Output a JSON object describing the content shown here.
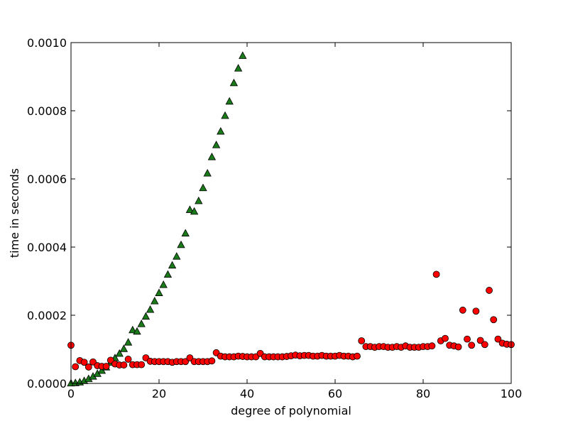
{
  "chart_data": {
    "type": "scatter",
    "title": "",
    "xlabel": "degree of polynomial",
    "ylabel": "time in seconds",
    "xlim": [
      0,
      100
    ],
    "ylim": [
      0,
      0.001
    ],
    "xticks": [
      0,
      20,
      40,
      60,
      80,
      100
    ],
    "xtick_labels": [
      "0",
      "20",
      "40",
      "60",
      "80",
      "100"
    ],
    "yticks": [
      0,
      0.0002,
      0.0004,
      0.0006,
      0.0008,
      0.001
    ],
    "ytick_labels": [
      "0.0000",
      "0.0002",
      "0.0004",
      "0.0006",
      "0.0008",
      "0.0010"
    ],
    "grid": false,
    "legend": "none",
    "series": [
      {
        "marker": "triangle",
        "color": "#1a7a1a",
        "x": [
          0,
          1,
          2,
          3,
          4,
          5,
          6,
          7,
          8,
          9,
          10,
          11,
          12,
          13,
          14,
          15,
          16,
          17,
          18,
          19,
          20,
          21,
          22,
          23,
          24,
          25,
          26,
          27,
          28,
          29,
          30,
          31,
          32,
          33,
          34,
          35,
          36,
          37,
          38,
          39
        ],
        "y": [
          1e-06,
          2e-06,
          4e-06,
          8e-06,
          1.4e-05,
          2.1e-05,
          2.9e-05,
          3.8e-05,
          4.8e-05,
          6.2e-05,
          7.5e-05,
          8.8e-05,
          0.000102,
          0.000121,
          0.000157,
          0.000153,
          0.000175,
          0.000197,
          0.000217,
          0.000242,
          0.000266,
          0.00029,
          0.00032,
          0.000347,
          0.000373,
          0.000407,
          0.000441,
          0.00051,
          0.000505,
          0.000536,
          0.000574,
          0.000617,
          0.000665,
          0.0007,
          0.00074,
          0.000786,
          0.000828,
          0.000882,
          0.000925,
          0.000962
        ]
      },
      {
        "marker": "circle",
        "color": "#ff0000",
        "x": [
          0,
          1,
          2,
          3,
          4,
          5,
          6,
          7,
          8,
          9,
          10,
          11,
          12,
          13,
          14,
          15,
          16,
          17,
          18,
          19,
          20,
          21,
          22,
          23,
          24,
          25,
          26,
          27,
          28,
          29,
          30,
          31,
          32,
          33,
          34,
          35,
          36,
          37,
          38,
          39,
          40,
          41,
          42,
          43,
          44,
          45,
          46,
          47,
          48,
          49,
          50,
          51,
          52,
          53,
          54,
          55,
          56,
          57,
          58,
          59,
          60,
          61,
          62,
          63,
          64,
          65,
          66,
          67,
          68,
          69,
          70,
          71,
          72,
          73,
          74,
          75,
          76,
          77,
          78,
          79,
          80,
          81,
          82,
          83,
          84,
          85,
          86,
          87,
          88,
          89,
          90,
          91,
          92,
          93,
          94,
          95,
          96,
          97,
          98,
          99,
          100
        ],
        "y": [
          0.000112,
          4.9e-05,
          6.7e-05,
          6.2e-05,
          4.8e-05,
          6.3e-05,
          5.2e-05,
          5e-05,
          5e-05,
          6.8e-05,
          5.7e-05,
          5.4e-05,
          5.4e-05,
          7.1e-05,
          5.5e-05,
          5.5e-05,
          5.5e-05,
          7.5e-05,
          6.5e-05,
          6.4e-05,
          6.4e-05,
          6.4e-05,
          6.4e-05,
          6.2e-05,
          6.4e-05,
          6.4e-05,
          6.4e-05,
          7.5e-05,
          6.4e-05,
          6.4e-05,
          6.4e-05,
          6.4e-05,
          6.6e-05,
          9e-05,
          8e-05,
          7.8e-05,
          7.8e-05,
          7.8e-05,
          8e-05,
          7.9e-05,
          7.8e-05,
          7.8e-05,
          7.8e-05,
          8.8e-05,
          7.8e-05,
          7.8e-05,
          7.8e-05,
          7.8e-05,
          7.8e-05,
          7.9e-05,
          8.1e-05,
          8.3e-05,
          8.1e-05,
          8.2e-05,
          8.2e-05,
          8e-05,
          8e-05,
          8.2e-05,
          8e-05,
          8e-05,
          8e-05,
          8.2e-05,
          8e-05,
          8e-05,
          7.8e-05,
          8e-05,
          0.000125,
          0.000108,
          0.000108,
          0.000106,
          0.000108,
          0.000108,
          0.000106,
          0.000106,
          0.000108,
          0.000106,
          0.00011,
          0.000106,
          0.000106,
          0.000106,
          0.000108,
          0.000108,
          0.00011,
          0.00032,
          0.000125,
          0.000132,
          0.000112,
          0.00011,
          0.000107,
          0.000215,
          0.00013,
          0.000112,
          0.000212,
          0.000126,
          0.000114,
          0.000273,
          0.000187,
          0.00013,
          0.000118,
          0.000115,
          0.000114
        ]
      }
    ]
  }
}
